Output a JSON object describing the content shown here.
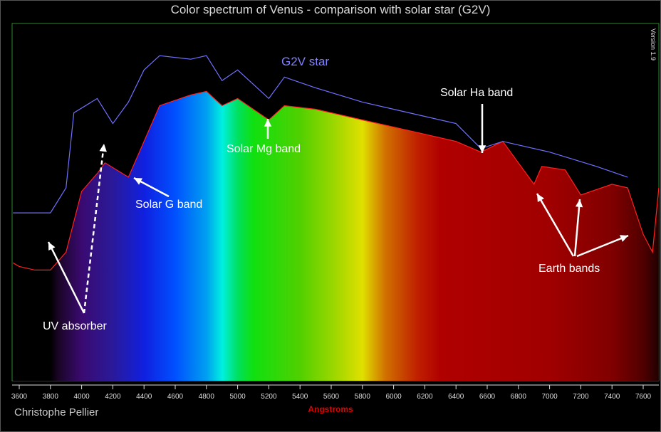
{
  "title": "Color spectrum of Venus - comparison with solar star (G2V)",
  "author": "Christophe Pellier",
  "software_label": "Version 1.9",
  "chart_data": {
    "type": "line",
    "title": "Color spectrum of Venus - comparison with solar star (G2V)",
    "xlabel": "Angstroms",
    "ylabel": "",
    "xlim": [
      3560,
      7700
    ],
    "ylim": [
      0,
      1
    ],
    "xticks": [
      3600,
      3800,
      4000,
      4200,
      4400,
      4600,
      4800,
      5000,
      5200,
      5400,
      5600,
      5800,
      6000,
      6200,
      6400,
      6600,
      6800,
      7000,
      7200,
      7400,
      7600
    ],
    "grid": false,
    "series": [
      {
        "name": "",
        "color": "#ff2020",
        "filled_with_spectrum": true,
        "x": [
          3560,
          3600,
          3700,
          3800,
          3900,
          4000,
          4100,
          4150,
          4300,
          4400,
          4500,
          4700,
          4800,
          4900,
          5000,
          5200,
          5300,
          5500,
          5800,
          6000,
          6400,
          6560,
          6700,
          6900,
          6950,
          7100,
          7200,
          7400,
          7500,
          7600,
          7660,
          7700
        ],
        "y": [
          0.33,
          0.32,
          0.31,
          0.31,
          0.36,
          0.53,
          0.58,
          0.61,
          0.57,
          0.67,
          0.77,
          0.8,
          0.81,
          0.77,
          0.79,
          0.73,
          0.77,
          0.76,
          0.73,
          0.71,
          0.67,
          0.64,
          0.67,
          0.55,
          0.6,
          0.59,
          0.52,
          0.55,
          0.54,
          0.41,
          0.36,
          0.54
        ]
      },
      {
        "name": "G2V star",
        "color": "#7070ff",
        "x": [
          3560,
          3700,
          3800,
          3900,
          3950,
          4100,
          4200,
          4300,
          4400,
          4500,
          4700,
          4800,
          4900,
          5000,
          5200,
          5300,
          5500,
          5800,
          6000,
          6400,
          6560,
          6700,
          7000,
          7300,
          7500
        ],
        "y": [
          0.47,
          0.47,
          0.47,
          0.54,
          0.75,
          0.79,
          0.72,
          0.78,
          0.87,
          0.91,
          0.9,
          0.91,
          0.84,
          0.87,
          0.79,
          0.85,
          0.82,
          0.78,
          0.76,
          0.72,
          0.65,
          0.67,
          0.64,
          0.6,
          0.57
        ]
      }
    ],
    "annotations": [
      {
        "text": "G2V star",
        "color": "#8080ff"
      },
      {
        "text": "Solar Ha band",
        "color": "#ffffff"
      },
      {
        "text": "Solar Mg band",
        "color": "#ffffff"
      },
      {
        "text": "Solar G band",
        "color": "#ffffff"
      },
      {
        "text": "UV absorber",
        "color": "#ffffff"
      },
      {
        "text": "Earth bands",
        "color": "#ffffff"
      }
    ]
  }
}
